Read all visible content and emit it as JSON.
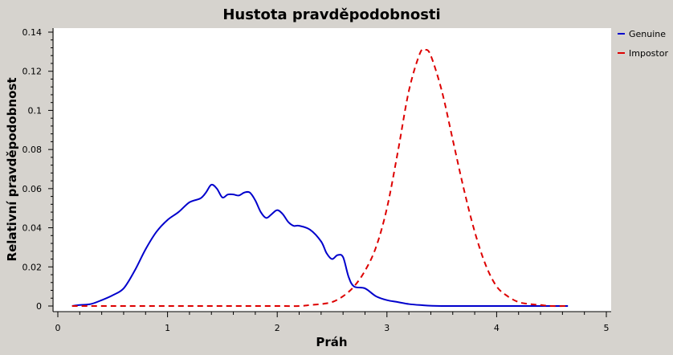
{
  "window_bg": "#d6d3ce",
  "chart_data": {
    "type": "line",
    "title": "Hustota pravděpodobnosti",
    "xlabel": "Práh",
    "ylabel": "Relativní pravděpodobnost",
    "xlim": [
      0,
      5
    ],
    "ylim": [
      0,
      0.14
    ],
    "xticks": [
      0,
      1,
      2,
      3,
      4,
      5
    ],
    "xtick_labels": [
      "0",
      "1",
      "2",
      "3",
      "4",
      "5"
    ],
    "yticks": [
      0,
      0.02,
      0.04,
      0.06,
      0.08,
      0.1,
      0.12,
      0.14
    ],
    "ytick_labels": [
      "0",
      "0.02",
      "0.04",
      "0.06",
      "0.08",
      "0.1",
      "0.12",
      "0.14"
    ],
    "grid": false,
    "legend_position": "right",
    "series": [
      {
        "name": "Genuine",
        "color": "#0000cc",
        "dash": "solid",
        "x": [
          0.13,
          0.2,
          0.3,
          0.4,
          0.5,
          0.6,
          0.7,
          0.8,
          0.9,
          1.0,
          1.1,
          1.2,
          1.3,
          1.35,
          1.4,
          1.45,
          1.5,
          1.55,
          1.6,
          1.65,
          1.7,
          1.75,
          1.8,
          1.85,
          1.9,
          1.95,
          2.0,
          2.05,
          2.1,
          2.15,
          2.2,
          2.3,
          2.4,
          2.45,
          2.5,
          2.55,
          2.6,
          2.65,
          2.7,
          2.8,
          2.9,
          3.0,
          3.1,
          3.2,
          3.3,
          3.5,
          4.0,
          4.65
        ],
        "y": [
          0.0,
          0.0005,
          0.001,
          0.003,
          0.0055,
          0.009,
          0.018,
          0.029,
          0.038,
          0.044,
          0.048,
          0.053,
          0.055,
          0.058,
          0.062,
          0.06,
          0.0555,
          0.057,
          0.057,
          0.0565,
          0.058,
          0.058,
          0.054,
          0.048,
          0.045,
          0.047,
          0.049,
          0.047,
          0.043,
          0.041,
          0.041,
          0.039,
          0.033,
          0.027,
          0.024,
          0.026,
          0.025,
          0.015,
          0.01,
          0.009,
          0.005,
          0.003,
          0.002,
          0.001,
          0.0005,
          0.0,
          0.0,
          0.0
        ]
      },
      {
        "name": "Impostor",
        "color": "#dd0000",
        "dash": "dashed",
        "x": [
          0.13,
          0.5,
          1.0,
          1.5,
          2.0,
          2.2,
          2.3,
          2.4,
          2.5,
          2.6,
          2.7,
          2.8,
          2.9,
          3.0,
          3.1,
          3.2,
          3.3,
          3.35,
          3.4,
          3.5,
          3.6,
          3.7,
          3.8,
          3.9,
          4.0,
          4.1,
          4.2,
          4.3,
          4.4,
          4.5,
          4.65
        ],
        "y": [
          0.0,
          0.0,
          0.0,
          0.0,
          0.0,
          0.0,
          0.0005,
          0.001,
          0.002,
          0.005,
          0.01,
          0.018,
          0.03,
          0.05,
          0.079,
          0.11,
          0.129,
          0.131,
          0.128,
          0.11,
          0.085,
          0.06,
          0.038,
          0.021,
          0.01,
          0.005,
          0.002,
          0.001,
          0.0005,
          0.0,
          0.0
        ]
      }
    ]
  }
}
